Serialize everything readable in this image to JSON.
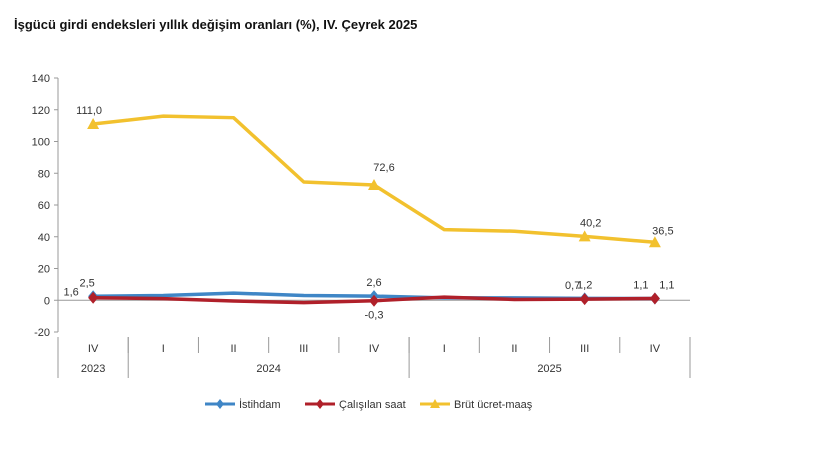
{
  "chart_data": {
    "type": "line",
    "title": "İşgücü girdi endeksleri yıllık değişim oranları (%), IV. Çeyrek 2025",
    "categories": [
      "IV",
      "I",
      "II",
      "III",
      "IV",
      "I",
      "II",
      "III",
      "IV"
    ],
    "years": [
      {
        "label": "2023",
        "span": 1
      },
      {
        "label": "2024",
        "span": 4
      },
      {
        "label": "2025",
        "span": 4
      }
    ],
    "ylim": [
      -20,
      140
    ],
    "yticks": [
      -20,
      0,
      20,
      40,
      60,
      80,
      100,
      120,
      140
    ],
    "grid": false,
    "legend_position": "bottom",
    "series": [
      {
        "name": "İstihdam",
        "color": "#3f86c6",
        "marker": "diamond",
        "values": [
          2.5,
          3,
          4.5,
          3,
          2.6,
          1.5,
          1.5,
          1.2,
          1.1
        ],
        "labels": [
          {
            "i": 0,
            "text": "2,5"
          },
          {
            "i": 4,
            "text": "2,6"
          },
          {
            "i": 7,
            "text": "1,2"
          },
          {
            "i": 8,
            "text": "1,1"
          }
        ]
      },
      {
        "name": "Çalışılan saat",
        "color": "#b0202a",
        "marker": "diamond",
        "values": [
          1.6,
          1,
          -0.5,
          -1.5,
          -0.3,
          2,
          0.5,
          0.7,
          1.1
        ],
        "labels": [
          {
            "i": 0,
            "text": "1,6"
          },
          {
            "i": 4,
            "text": "-0,3"
          },
          {
            "i": 7,
            "text": "0,7"
          },
          {
            "i": 8,
            "text": "1,1"
          }
        ]
      },
      {
        "name": "Brüt ücret-maaş",
        "color": "#f2c12e",
        "marker": "triangle",
        "values": [
          111.0,
          116,
          115,
          74.5,
          72.6,
          44.5,
          43.5,
          40.2,
          36.5
        ],
        "labels": [
          {
            "i": 0,
            "text": "111,0"
          },
          {
            "i": 4,
            "text": "72,6"
          },
          {
            "i": 7,
            "text": "40,2"
          },
          {
            "i": 8,
            "text": "36,5"
          }
        ]
      }
    ],
    "marker_indices": [
      0,
      4,
      7,
      8
    ]
  }
}
